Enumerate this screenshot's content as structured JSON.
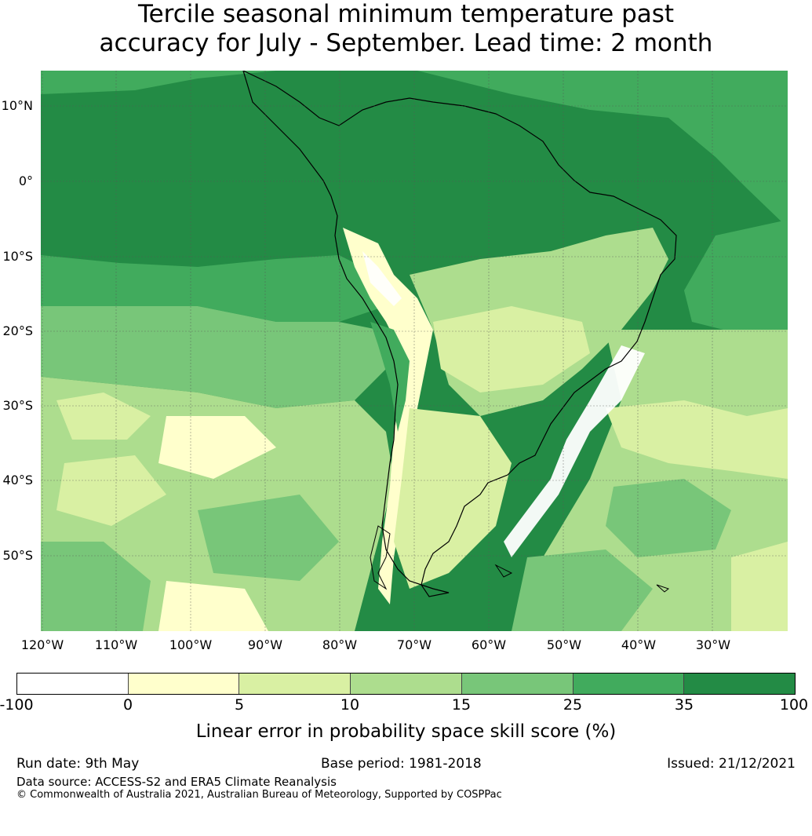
{
  "title": {
    "line1": "Tercile seasonal minimum temperature past",
    "line2": "accuracy for July - September. Lead time: 2 month"
  },
  "map": {
    "lat_labels": [
      "10°N",
      "0°",
      "10°S",
      "20°S",
      "30°S",
      "40°S",
      "50°S"
    ],
    "lon_labels": [
      "120°W",
      "110°W",
      "100°W",
      "90°W",
      "80°W",
      "70°W",
      "60°W",
      "50°W",
      "40°W",
      "30°W"
    ]
  },
  "colorbar": {
    "ticks": [
      "-100",
      "0",
      "5",
      "10",
      "15",
      "25",
      "35",
      "100"
    ],
    "colors": [
      "#ffffff",
      "#ffffcc",
      "#d9f0a3",
      "#addd8e",
      "#78c679",
      "#41ab5d",
      "#238b45"
    ],
    "label": "Linear error in probability space skill score (%)"
  },
  "footer": {
    "run_date": "Run date: 9th May",
    "base_period": "Base period: 1981-2018",
    "issued": "Issued: 21/12/2021",
    "data_source": "Data source: ACCESS-S2 and ERA5 Climate Reanalysis",
    "copyright": "© Commonwealth of Australia 2021, Australian Bureau of Meteorology, Supported by COSPPac"
  }
}
